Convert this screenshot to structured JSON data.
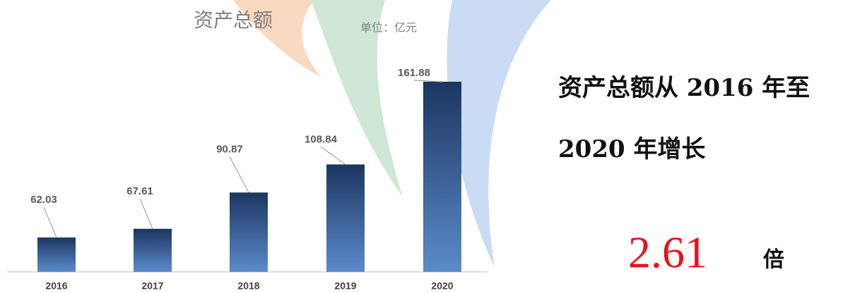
{
  "chart_data": {
    "type": "bar",
    "title": "资产总额",
    "subtitle": "单位：亿元",
    "categories": [
      "2016",
      "2017",
      "2018",
      "2019",
      "2020"
    ],
    "values": [
      62.03,
      67.61,
      90.87,
      108.84,
      161.88
    ],
    "ylim": [
      40,
      170
    ]
  },
  "summary": {
    "line1": "资产总额从 2016 年至",
    "line2": "2020 年增长",
    "multiple": "2.61",
    "unit": "倍"
  }
}
